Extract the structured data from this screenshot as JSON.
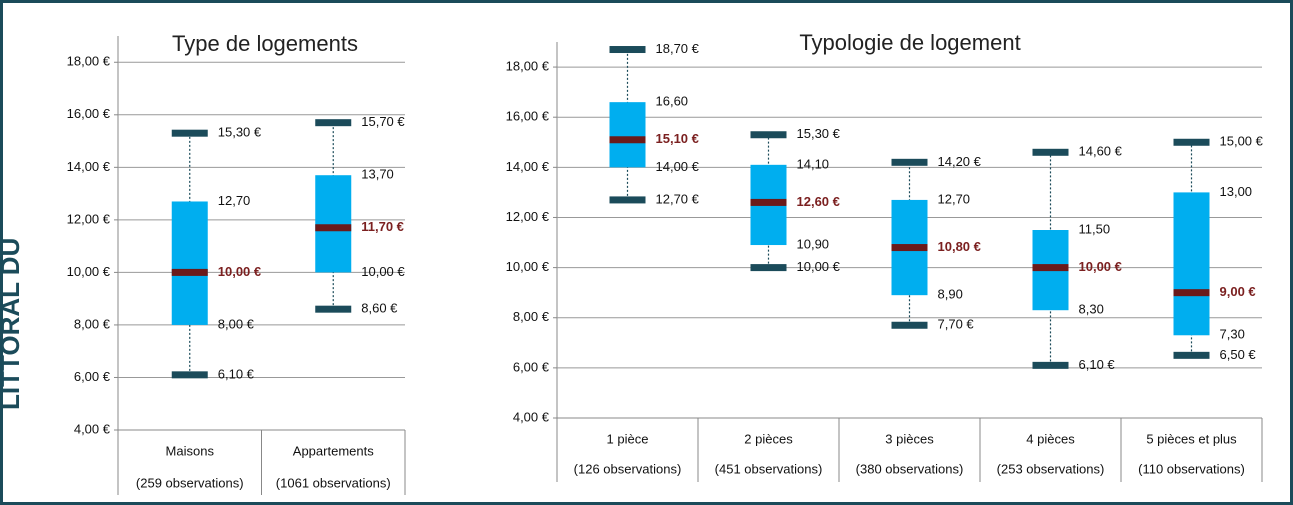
{
  "side_label": "LITTORAL DU",
  "chart_data": [
    {
      "type": "box",
      "title": "Type de logements",
      "categories": [
        "Maisons",
        "Appartements"
      ],
      "observations": [
        "(259 observations)",
        "(1061 observations)"
      ],
      "box_color": "#00aeef",
      "median_color": "#6b1a1a",
      "whisker_color": "#1b4b5a",
      "ylim": [
        4,
        19
      ],
      "yticks": [
        {
          "value": 4,
          "label": "4,00 €"
        },
        {
          "value": 6,
          "label": "6,00 €"
        },
        {
          "value": 8,
          "label": "8,00 €"
        },
        {
          "value": 10,
          "label": "10,00 €"
        },
        {
          "value": 12,
          "label": "12,00 €"
        },
        {
          "value": 14,
          "label": "14,00 €"
        },
        {
          "value": 16,
          "label": "16,00 €"
        },
        {
          "value": 18,
          "label": "18,00 €"
        }
      ],
      "grid": true,
      "boxes": [
        {
          "min": 6.1,
          "q1": 8.0,
          "median": 10.0,
          "q3": 12.7,
          "max": 15.3,
          "value_labels": {
            "min": "6,10 €",
            "q1": "8,00 €",
            "median": "10,00 €",
            "q3": "12,70",
            "max": "15,30 €"
          }
        },
        {
          "min": 8.6,
          "q1": 10.0,
          "median": 11.7,
          "q3": 13.7,
          "max": 15.7,
          "value_labels": {
            "min": "8,60 €",
            "q1": "10,00 €",
            "median": "11,70 €",
            "q3": "13,70",
            "max": "15,70 €"
          }
        }
      ]
    },
    {
      "type": "box",
      "title": "Typologie de logement",
      "categories": [
        "1 pièce",
        "2 pièces",
        "3 pièces",
        "4 pièces",
        "5 pièces et plus"
      ],
      "observations": [
        "(126 observations)",
        "(451 observations)",
        "(380 observations)",
        "(253 observations)",
        "(110 observations)"
      ],
      "box_color": "#00aeef",
      "median_color": "#6b1a1a",
      "whisker_color": "#1b4b5a",
      "ylim": [
        4,
        19
      ],
      "yticks": [
        {
          "value": 4,
          "label": "4,00 €"
        },
        {
          "value": 6,
          "label": "6,00 €"
        },
        {
          "value": 8,
          "label": "8,00 €"
        },
        {
          "value": 10,
          "label": "10,00 €"
        },
        {
          "value": 12,
          "label": "12,00 €"
        },
        {
          "value": 14,
          "label": "14,00 €"
        },
        {
          "value": 16,
          "label": "16,00 €"
        },
        {
          "value": 18,
          "label": "18,00 €"
        }
      ],
      "grid": true,
      "boxes": [
        {
          "min": 12.7,
          "q1": 14.0,
          "median": 15.1,
          "q3": 16.6,
          "max": 18.7,
          "value_labels": {
            "min": "12,70 €",
            "q1": "14,00 €",
            "median": "15,10 €",
            "q3": "16,60",
            "max": "18,70 €"
          }
        },
        {
          "min": 10.0,
          "q1": 10.9,
          "median": 12.6,
          "q3": 14.1,
          "max": 15.3,
          "value_labels": {
            "min": "10,00 €",
            "q1": "10,90",
            "median": "12,60 €",
            "q3": "14,10",
            "max": "15,30 €"
          }
        },
        {
          "min": 7.7,
          "q1": 8.9,
          "median": 10.8,
          "q3": 12.7,
          "max": 14.2,
          "value_labels": {
            "min": "7,70 €",
            "q1": "8,90",
            "median": "10,80 €",
            "q3": "12,70",
            "max": "14,20 €"
          }
        },
        {
          "min": 6.1,
          "q1": 8.3,
          "median": 10.0,
          "q3": 11.5,
          "max": 14.6,
          "value_labels": {
            "min": "6,10 €",
            "q1": "8,30",
            "median": "10,00 €",
            "q3": "11,50",
            "max": "14,60 €"
          }
        },
        {
          "min": 6.5,
          "q1": 7.3,
          "median": 9.0,
          "q3": 13.0,
          "max": 15.0,
          "value_labels": {
            "min": "6,50 €",
            "q1": "7,30",
            "median": "9,00 €",
            "q3": "13,00",
            "max": "15,00 €"
          }
        }
      ]
    }
  ]
}
